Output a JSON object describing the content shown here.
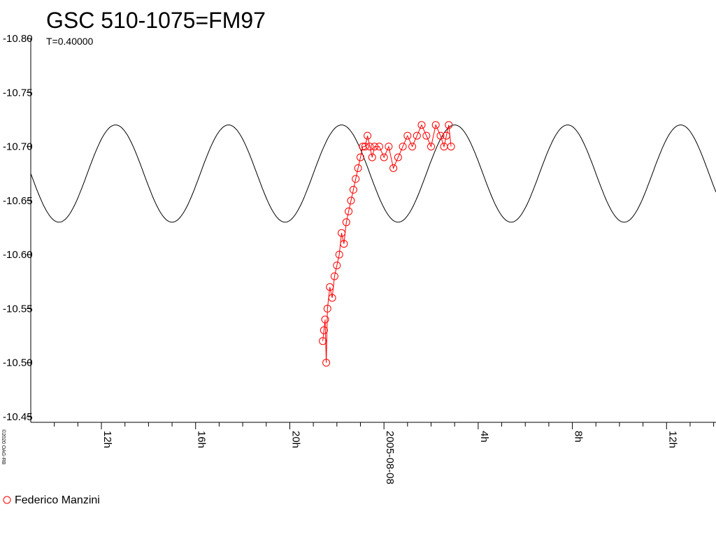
{
  "chart_data": {
    "type": "scatter",
    "title": "GSC 510-1075=FM97",
    "subtitle": "T=0.40000",
    "ylabel": "",
    "xlabel": "",
    "y_reversed": true,
    "ylim": [
      -10.45,
      -10.8
    ],
    "y_ticks": [
      "-10.80",
      "-10.75",
      "-10.70",
      "-10.65",
      "-10.60",
      "-10.55",
      "-10.50",
      "-10.45"
    ],
    "x_unit": "hours from 2005-08-07 09:00",
    "xlim": [
      0,
      29.1
    ],
    "x_tick_labels": [
      {
        "label": "12h",
        "x": 3
      },
      {
        "label": "16h",
        "x": 7
      },
      {
        "label": "20h",
        "x": 11
      },
      {
        "label": "2005-08-08",
        "x": 15
      },
      {
        "label": "4h",
        "x": 19
      },
      {
        "label": "8h",
        "x": 23
      },
      {
        "label": "12h",
        "x": 27
      }
    ],
    "model_curve": {
      "color": "#000000",
      "mean": -10.675,
      "amplitude": 0.045,
      "period_hours": 4.8,
      "max_at_hours": 18.0
    },
    "series": [
      {
        "name": "Federico Manzini",
        "color": "#ff0000",
        "marker": "open-circle",
        "points": [
          [
            12.4,
            -10.52
          ],
          [
            12.45,
            -10.53
          ],
          [
            12.5,
            -10.54
          ],
          [
            12.55,
            -10.5
          ],
          [
            12.6,
            -10.55
          ],
          [
            12.7,
            -10.57
          ],
          [
            12.8,
            -10.56
          ],
          [
            12.9,
            -10.58
          ],
          [
            13.0,
            -10.59
          ],
          [
            13.1,
            -10.6
          ],
          [
            13.2,
            -10.62
          ],
          [
            13.3,
            -10.61
          ],
          [
            13.4,
            -10.63
          ],
          [
            13.5,
            -10.64
          ],
          [
            13.6,
            -10.65
          ],
          [
            13.7,
            -10.66
          ],
          [
            13.8,
            -10.67
          ],
          [
            13.9,
            -10.68
          ],
          [
            14.0,
            -10.69
          ],
          [
            14.1,
            -10.7
          ],
          [
            14.2,
            -10.7
          ],
          [
            14.3,
            -10.71
          ],
          [
            14.4,
            -10.7
          ],
          [
            14.5,
            -10.69
          ],
          [
            14.6,
            -10.7
          ],
          [
            14.8,
            -10.7
          ],
          [
            15.0,
            -10.69
          ],
          [
            15.2,
            -10.7
          ],
          [
            15.4,
            -10.68
          ],
          [
            15.6,
            -10.69
          ],
          [
            15.8,
            -10.7
          ],
          [
            16.0,
            -10.71
          ],
          [
            16.2,
            -10.7
          ],
          [
            16.4,
            -10.71
          ],
          [
            16.6,
            -10.72
          ],
          [
            16.8,
            -10.71
          ],
          [
            17.0,
            -10.7
          ],
          [
            17.2,
            -10.72
          ],
          [
            17.4,
            -10.71
          ],
          [
            17.55,
            -10.7
          ],
          [
            17.65,
            -10.71
          ],
          [
            17.75,
            -10.72
          ],
          [
            17.85,
            -10.7
          ]
        ]
      }
    ],
    "legend": [
      {
        "label": "Federico Manzini",
        "color": "#ff0000",
        "marker": "open-circle"
      }
    ],
    "legend_position": "bottom-left",
    "copyright": "©2020 OAG-RB",
    "grid": false
  }
}
